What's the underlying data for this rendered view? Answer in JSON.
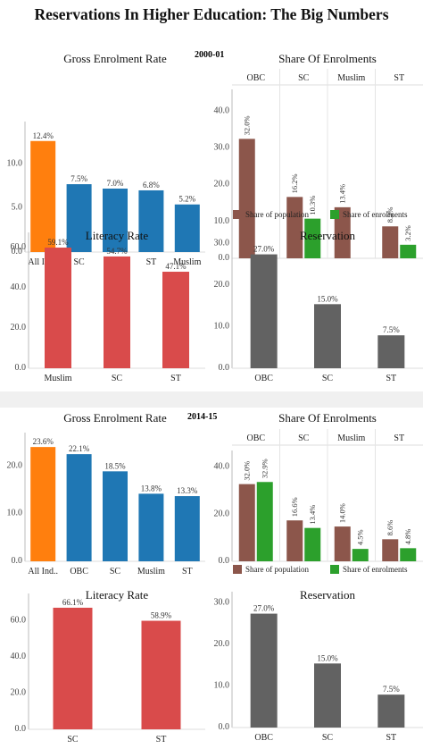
{
  "title": "Reservations In Higher Education: The Big Numbers",
  "periods": [
    {
      "label": "2000-01"
    },
    {
      "label": "2014-15"
    }
  ],
  "colors": {
    "orange": "#ff7f0e",
    "blue": "#1f77b4",
    "red": "#d94b4b",
    "brown": "#8c564b",
    "green": "#2ca02c",
    "gray": "#626262"
  },
  "chart_data": [
    {
      "id": "ger-2000",
      "type": "bar",
      "title": "Gross Enrolment Rate",
      "categories": [
        "All Ind..",
        "SC",
        "OBC",
        "ST",
        "Muslim"
      ],
      "values": [
        12.4,
        7.5,
        7.0,
        6.8,
        5.2
      ],
      "labels": [
        "12.4%",
        "7.5%",
        "7.0%",
        "6.8%",
        "5.2%"
      ],
      "colors": [
        "orange",
        "blue",
        "blue",
        "blue",
        "blue"
      ],
      "ylim": [
        0,
        14
      ],
      "yticks": [
        "0.0",
        "5.0",
        "10.0"
      ],
      "ytick_values": [
        0,
        5,
        10
      ]
    },
    {
      "id": "soe-2000",
      "type": "bar",
      "title": "Share Of Enrolments",
      "categories": [
        "OBC",
        "SC",
        "Muslim",
        "ST"
      ],
      "series": [
        {
          "name": "Share of population",
          "color": "brown",
          "values": [
            32.0,
            16.2,
            13.4,
            8.2
          ],
          "labels": [
            "32.0%",
            "16.2%",
            "13.4%",
            "8.2%"
          ]
        },
        {
          "name": "Share of enrolments",
          "color": "green",
          "values": [
            null,
            10.3,
            null,
            3.2
          ],
          "labels": [
            "",
            "10.3%",
            "",
            "3.2%"
          ]
        }
      ],
      "ylim": [
        0,
        44
      ],
      "yticks": [
        "0.0",
        "10.0",
        "20.0",
        "30.0",
        "40.0"
      ],
      "ytick_values": [
        0,
        10,
        20,
        30,
        40
      ],
      "legend": "bottom"
    },
    {
      "id": "lit-2000",
      "type": "bar",
      "title": "Literacy Rate",
      "categories": [
        "Muslim",
        "SC",
        "ST"
      ],
      "values": [
        59.1,
        54.7,
        47.1
      ],
      "labels": [
        "59.1%",
        "54.7%",
        "47.1%"
      ],
      "colors": [
        "red",
        "red",
        "red"
      ],
      "ylim": [
        0,
        64
      ],
      "yticks": [
        "0.0",
        "20.0",
        "40.0",
        "60.0"
      ],
      "ytick_values": [
        0,
        20,
        40,
        60
      ]
    },
    {
      "id": "res-2000",
      "type": "bar",
      "title": "Reservation",
      "categories": [
        "OBC",
        "SC",
        "ST"
      ],
      "values": [
        27.0,
        15.0,
        7.5
      ],
      "labels": [
        "27.0%",
        "15.0%",
        "7.5%"
      ],
      "colors": [
        "gray",
        "gray",
        "gray"
      ],
      "ylim": [
        0,
        31
      ],
      "yticks": [
        "0.0",
        "10.0",
        "20.0",
        "30.0"
      ],
      "ytick_values": [
        0,
        10,
        20,
        30
      ]
    },
    {
      "id": "ger-2014",
      "type": "bar",
      "title": "Gross Enrolment Rate",
      "categories": [
        "All Ind..",
        "OBC",
        "SC",
        "Muslim",
        "ST"
      ],
      "values": [
        23.6,
        22.1,
        18.5,
        13.8,
        13.3
      ],
      "labels": [
        "23.6%",
        "22.1%",
        "18.5%",
        "13.8%",
        "13.3%"
      ],
      "colors": [
        "orange",
        "blue",
        "blue",
        "blue",
        "blue"
      ],
      "ylim": [
        0,
        25.5
      ],
      "yticks": [
        "0.0",
        "10.0",
        "20.0"
      ],
      "ytick_values": [
        0,
        10,
        20
      ]
    },
    {
      "id": "soe-2014",
      "type": "bar",
      "title": "Share Of Enrolments",
      "categories": [
        "OBC",
        "SC",
        "Muslim",
        "ST"
      ],
      "series": [
        {
          "name": "Share of population",
          "color": "brown",
          "values": [
            32.0,
            16.6,
            14.0,
            8.6
          ],
          "labels": [
            "32.0%",
            "16.6%",
            "14.0%",
            "8.6%"
          ]
        },
        {
          "name": "Share of enrolments",
          "color": "green",
          "values": [
            32.9,
            13.4,
            4.5,
            4.8
          ],
          "labels": [
            "32.9%",
            "13.4%",
            "4.5%",
            "4.8%"
          ]
        }
      ],
      "ylim": [
        0,
        44
      ],
      "yticks": [
        "0.0",
        "20.0",
        "40.0"
      ],
      "ytick_values": [
        0,
        20,
        40
      ],
      "legend": "bottom"
    },
    {
      "id": "lit-2014",
      "type": "bar",
      "title": "Literacy Rate",
      "categories": [
        "SC",
        "ST"
      ],
      "values": [
        66.1,
        58.9
      ],
      "labels": [
        "66.1%",
        "58.9%"
      ],
      "colors": [
        "red",
        "red"
      ],
      "ylim": [
        0,
        71
      ],
      "yticks": [
        "0.0",
        "20.0",
        "40.0",
        "60.0"
      ],
      "ytick_values": [
        0,
        20,
        40,
        60
      ]
    },
    {
      "id": "res-2014",
      "type": "bar",
      "title": "Reservation",
      "categories": [
        "OBC",
        "SC",
        "ST"
      ],
      "values": [
        27.0,
        15.0,
        7.5
      ],
      "labels": [
        "27.0%",
        "15.0%",
        "7.5%"
      ],
      "colors": [
        "gray",
        "gray",
        "gray"
      ],
      "ylim": [
        0,
        31
      ],
      "yticks": [
        "0.0",
        "10.0",
        "20.0",
        "30.0"
      ],
      "ytick_values": [
        0,
        10,
        20,
        30
      ]
    }
  ]
}
